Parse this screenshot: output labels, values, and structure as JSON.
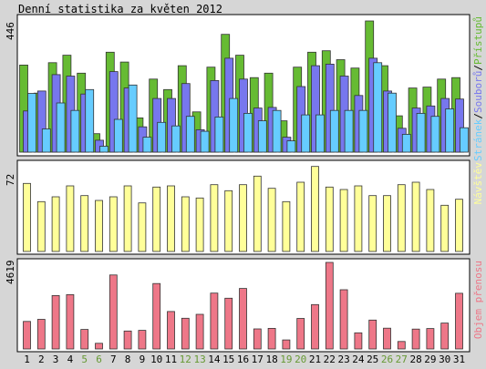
{
  "title": "Denní statistika za květen 2012",
  "colors": {
    "background": "#d6d6d6",
    "panel": "#ffffff",
    "pristupu": "#66bb33",
    "souboru": "#7777ee",
    "stranek": "#66ccff",
    "navstev": "#ffff99",
    "objem": "#ee7788",
    "bar_outline": "#333333",
    "weekday_label": "#000000",
    "weekend_label": "#669933"
  },
  "chart_data": [
    {
      "type": "bar",
      "panel": "hits",
      "ymax_label": "446",
      "ylim": [
        0,
        446
      ],
      "legend": {
        "stranek": "Stránek",
        "sep1": "/",
        "souboru": "Souborů",
        "sep2": "/",
        "pristupu": "Přístupů"
      },
      "categories": [
        "1",
        "2",
        "3",
        "4",
        "5",
        "6",
        "7",
        "8",
        "9",
        "10",
        "11",
        "12",
        "13",
        "14",
        "15",
        "16",
        "17",
        "18",
        "19",
        "20",
        "21",
        "22",
        "23",
        "24",
        "25",
        "26",
        "27",
        "28",
        "29",
        "30",
        "31"
      ],
      "series": [
        {
          "name": "Přístupů",
          "values": [
            292,
            198,
            300,
            325,
            265,
            62,
            335,
            302,
            115,
            245,
            210,
            290,
            135,
            285,
            395,
            325,
            250,
            265,
            105,
            285,
            335,
            340,
            310,
            282,
            440,
            290,
            122,
            215,
            218,
            245,
            250
          ]
        },
        {
          "name": "Souborů",
          "values": [
            138,
            205,
            260,
            255,
            195,
            40,
            270,
            215,
            85,
            180,
            180,
            230,
            75,
            240,
            315,
            245,
            148,
            150,
            50,
            220,
            290,
            295,
            255,
            190,
            315,
            205,
            80,
            148,
            155,
            180,
            178
          ]
        },
        {
          "name": "Stránek",
          "values": [
            197,
            78,
            165,
            140,
            210,
            20,
            110,
            225,
            50,
            100,
            88,
            120,
            70,
            118,
            180,
            130,
            105,
            140,
            38,
            125,
            125,
            140,
            140,
            140,
            300,
            198,
            60,
            130,
            120,
            145,
            82
          ]
        }
      ]
    },
    {
      "type": "bar",
      "panel": "visits",
      "ymax_label": "72",
      "ylim": [
        0,
        72
      ],
      "legend": "Návštěv",
      "categories": [
        "1",
        "2",
        "3",
        "4",
        "5",
        "6",
        "7",
        "8",
        "9",
        "10",
        "11",
        "12",
        "13",
        "14",
        "15",
        "16",
        "17",
        "18",
        "19",
        "20",
        "21",
        "22",
        "23",
        "24",
        "25",
        "26",
        "27",
        "28",
        "29",
        "30",
        "31"
      ],
      "series": [
        {
          "name": "Návštěv",
          "values": [
            56,
            41,
            45,
            54,
            46,
            42,
            45,
            54,
            40,
            53,
            54,
            45,
            44,
            55,
            50,
            55,
            62,
            52,
            41,
            57,
            70,
            53,
            51,
            54,
            46,
            46,
            55,
            57,
            51,
            38,
            43
          ]
        }
      ]
    },
    {
      "type": "bar",
      "panel": "volume",
      "ymax_label": "4619",
      "ylim": [
        0,
        4619
      ],
      "legend": "Objem přenosu",
      "categories": [
        "1",
        "2",
        "3",
        "4",
        "5",
        "6",
        "7",
        "8",
        "9",
        "10",
        "11",
        "12",
        "13",
        "14",
        "15",
        "16",
        "17",
        "18",
        "19",
        "20",
        "21",
        "22",
        "23",
        "24",
        "25",
        "26",
        "27",
        "28",
        "29",
        "30",
        "31"
      ],
      "series": [
        {
          "name": "Objem přenosu",
          "values": [
            1470,
            1580,
            2850,
            2900,
            1040,
            300,
            3950,
            960,
            990,
            3490,
            2000,
            1640,
            1850,
            2980,
            2710,
            3230,
            1070,
            1100,
            480,
            1630,
            2370,
            4619,
            3160,
            860,
            1540,
            1110,
            400,
            1060,
            1090,
            1380,
            2970
          ]
        }
      ]
    }
  ],
  "weekend_days": [
    5,
    6,
    12,
    13,
    19,
    20,
    26,
    27
  ]
}
